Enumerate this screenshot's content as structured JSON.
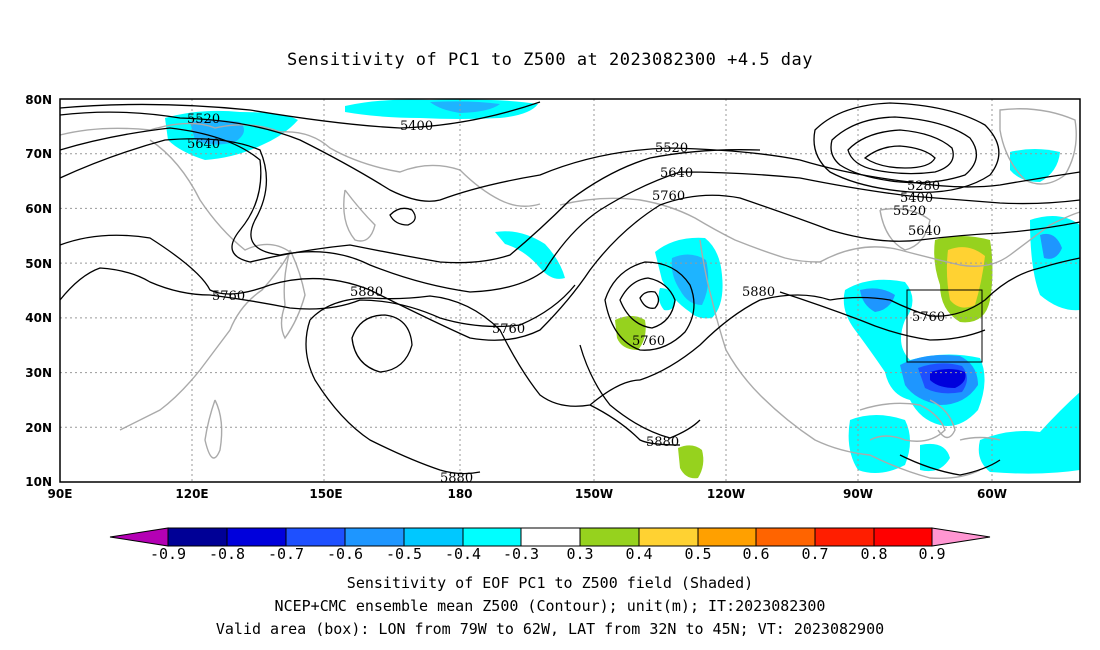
{
  "title": "Sensitivity of PC1 to Z500 at 2023082300 +4.5 day",
  "map": {
    "lat_labels": [
      "80N",
      "70N",
      "60N",
      "50N",
      "40N",
      "30N",
      "20N",
      "10N"
    ],
    "lon_labels": [
      "90E",
      "120E",
      "150E",
      "180",
      "150W",
      "120W",
      "90W",
      "60W"
    ],
    "contour_labels": [
      "5520",
      "5640",
      "5400",
      "5520",
      "5640",
      "5760",
      "5280",
      "5400",
      "5520",
      "5640",
      "5760",
      "5880",
      "5760",
      "5880",
      "5760",
      "5760",
      "5880",
      "5880"
    ],
    "valid_box": {
      "lon_west": -79,
      "lon_east": -62,
      "lat_south": 32,
      "lat_north": 45
    }
  },
  "colorbar": {
    "labels": [
      "-0.9",
      "-0.8",
      "-0.7",
      "-0.6",
      "-0.5",
      "-0.4",
      "-0.3",
      "0.3",
      "0.4",
      "0.5",
      "0.6",
      "0.7",
      "0.8",
      "0.9"
    ],
    "colors": [
      "#b400b4",
      "#000096",
      "#0000dc",
      "#1e50ff",
      "#1e96ff",
      "#00c8ff",
      "#00ffff",
      "#ffffff",
      "#96d21e",
      "#ffd232",
      "#ffa000",
      "#ff6400",
      "#ff1e00",
      "#ff0000",
      "#ff96d2"
    ]
  },
  "captions": {
    "line1": "Sensitivity of EOF PC1 to Z500 field (Shaded)",
    "line2": "NCEP+CMC ensemble mean Z500 (Contour); unit(m); IT:2023082300",
    "line3": "Valid area (box): LON from 79W to 62W, LAT from 32N to 45N; VT: 2023082900"
  }
}
